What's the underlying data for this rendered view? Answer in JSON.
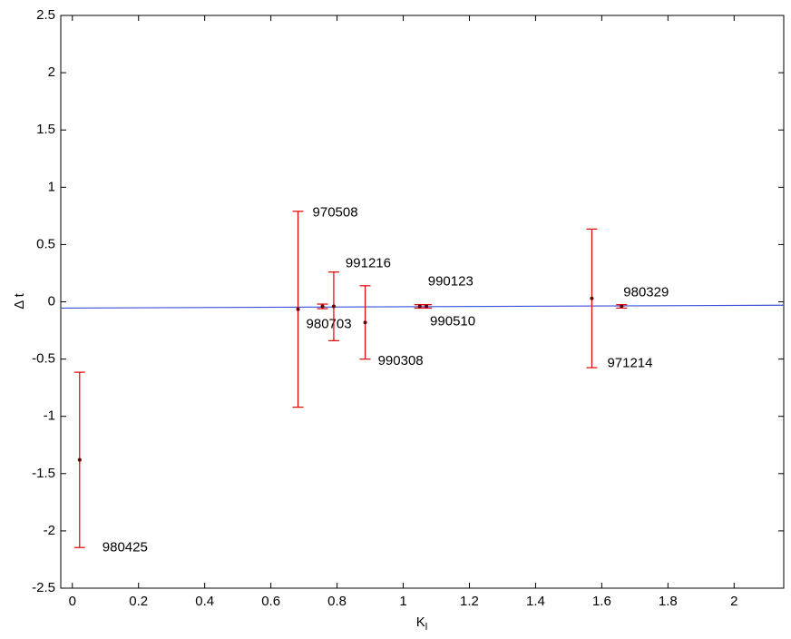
{
  "chart_data": {
    "type": "errorbar",
    "xlabel": "K",
    "xlabel_sub": "l",
    "ylabel": "Δ t",
    "xlim": [
      -0.035,
      2.15
    ],
    "ylim": [
      -2.5,
      2.5
    ],
    "xticks": [
      0,
      0.2,
      0.4,
      0.6,
      0.8,
      1,
      1.2,
      1.4,
      1.6,
      1.8,
      2
    ],
    "yticks": [
      -2.5,
      -2,
      -1.5,
      -1,
      -0.5,
      0,
      0.5,
      1,
      1.5,
      2,
      2.5
    ],
    "series": [
      {
        "color": "#e00000",
        "labels": [
          "980425",
          "970508",
          "980703",
          "991216",
          "990308",
          "990123",
          "990510",
          "971214",
          "980329"
        ],
        "x": [
          0.022,
          0.682,
          0.756,
          0.79,
          0.885,
          1.05,
          1.07,
          1.57,
          1.66
        ],
        "values": [
          -1.38,
          -0.065,
          -0.04,
          -0.04,
          -0.18,
          -0.04,
          -0.04,
          0.03,
          -0.04
        ],
        "errors": [
          0.765,
          0.855,
          0.02,
          0.3,
          0.32,
          0.015,
          0.015,
          0.605,
          0.015
        ]
      }
    ],
    "fit_line": {
      "color": "#3a4fd8",
      "x": [
        -0.035,
        2.15
      ],
      "values": [
        -0.055,
        -0.03
      ]
    }
  }
}
